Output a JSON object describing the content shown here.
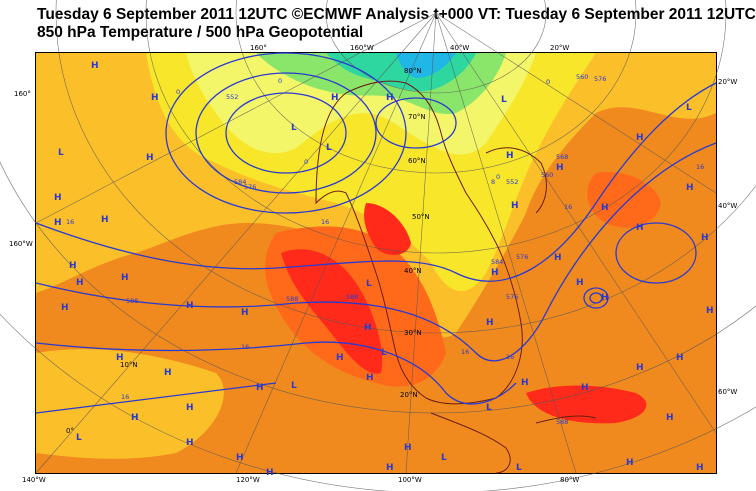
{
  "header": {
    "line1": "Tuesday 6 September 2011 12UTC ©ECMWF Analysis t+000 VT: Tuesday 6 September 2011 12UTC",
    "line2": "850 hPa Temperature / 500 hPa Geopotential"
  },
  "colors": {
    "ocean_bg": "#f08a1e",
    "hot": "#ff2a1a",
    "warm": "#ff6a1a",
    "mild": "#fbbf2a",
    "cool": "#f8e62a",
    "pale": "#f4f66a",
    "cold": "#8ae66a",
    "colder": "#2ed6a0",
    "coldest": "#20b6e6",
    "contour": "#2a3ad0",
    "coast": "#6a1e10",
    "grid": "#555555"
  },
  "labels": {
    "top": [
      "160°",
      "160°W",
      "40°W",
      "20°W"
    ],
    "left": [
      "160°",
      "160°W"
    ],
    "right": [
      "20°W",
      "40°W",
      "60°W"
    ],
    "bottom": [
      "140°W",
      "120°W",
      "100°W",
      "80°W"
    ],
    "lat": [
      "80°N",
      "70°N",
      "60°N",
      "50°N",
      "40°N",
      "30°N",
      "20°N",
      "10°N",
      "0°"
    ]
  },
  "contour_values": [
    "552",
    "560",
    "568",
    "576",
    "584",
    "588",
    "16",
    "0",
    "8"
  ],
  "pressure_marks": [
    "H",
    "L"
  ]
}
